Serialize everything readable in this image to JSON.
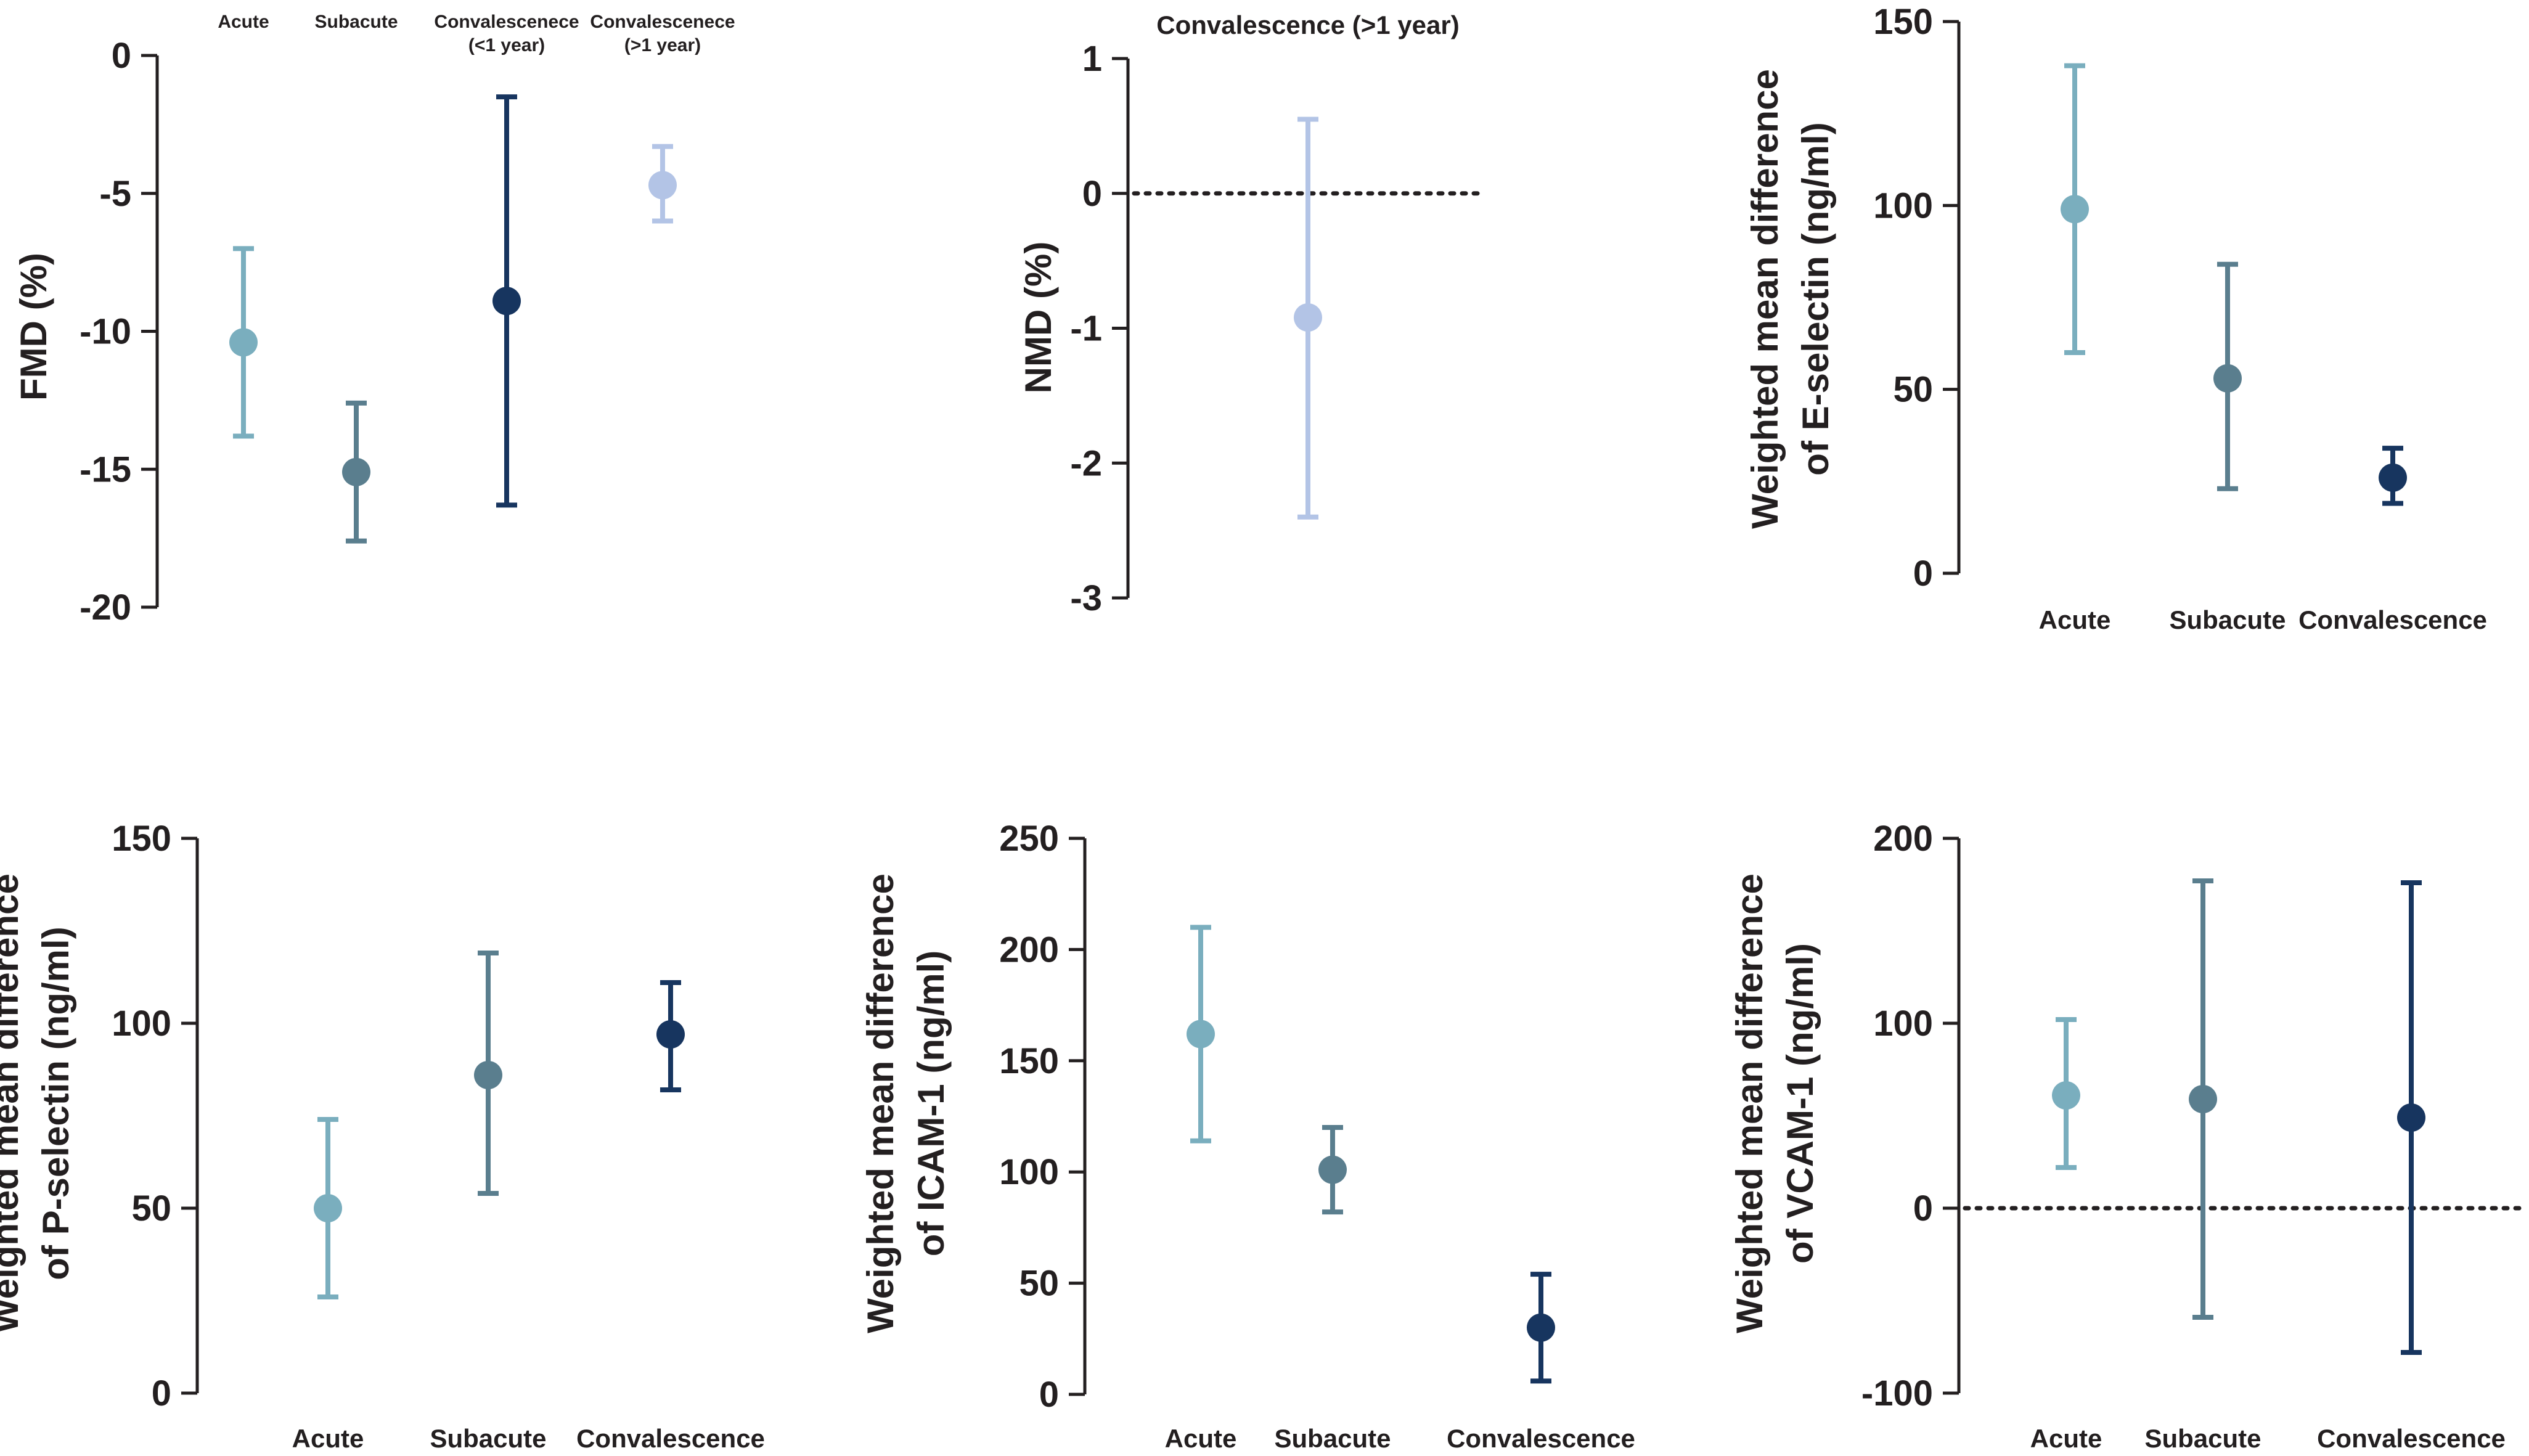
{
  "chart_data": [
    {
      "type": "errorbar",
      "title": "",
      "xlabel": "",
      "ylabel": "FMD (%)",
      "ylim": [
        -20,
        0
      ],
      "yticks": [
        0,
        -5,
        -10,
        -15,
        -20
      ],
      "ytick_labels": [
        "0",
        "-5",
        "-10",
        "-15",
        "-20"
      ],
      "category_label_position": "top",
      "categories": [
        [
          "Acute"
        ],
        [
          "Subacute"
        ],
        [
          "Convalescenece",
          "(<1 year)"
        ],
        [
          "Convalescenece",
          "(>1 year)"
        ]
      ],
      "points": [
        {
          "mean": -10.4,
          "lower": -13.8,
          "upper": -7.0,
          "color": "#7aaebe"
        },
        {
          "mean": -15.1,
          "lower": -17.6,
          "upper": -12.6,
          "color": "#5a7e8e"
        },
        {
          "mean": -8.9,
          "lower": -16.3,
          "upper": -1.5,
          "color": "#17355f"
        },
        {
          "mean": -4.7,
          "lower": -6.0,
          "upper": -3.3,
          "color": "#b3c4e6"
        }
      ],
      "reference_line": null
    },
    {
      "type": "errorbar",
      "title": "",
      "xlabel": "",
      "ylabel": "NMD (%)",
      "ylim": [
        -3,
        1
      ],
      "yticks": [
        1,
        0,
        -1,
        -2,
        -3
      ],
      "ytick_labels": [
        "1",
        "0",
        "-1",
        "-2",
        "-3"
      ],
      "category_label_position": "top",
      "categories": [
        [
          "Convalescence (>1 year)"
        ]
      ],
      "points": [
        {
          "mean": -0.92,
          "lower": -2.4,
          "upper": 0.55,
          "color": "#b3c4e6"
        }
      ],
      "reference_line": 0
    },
    {
      "type": "errorbar",
      "title": "",
      "xlabel": "",
      "ylabel": [
        "Weighted mean difference",
        "of E-selectin (ng/ml)"
      ],
      "ylim": [
        0,
        150
      ],
      "yticks": [
        150,
        100,
        50,
        0
      ],
      "ytick_labels": [
        "150",
        "100",
        "50",
        "0"
      ],
      "category_label_position": "bottom",
      "categories": [
        [
          "Acute"
        ],
        [
          "Subacute"
        ],
        [
          "Convalescence"
        ]
      ],
      "points": [
        {
          "mean": 99,
          "lower": 60,
          "upper": 138,
          "color": "#7aaebe"
        },
        {
          "mean": 53,
          "lower": 23,
          "upper": 84,
          "color": "#5a7e8e"
        },
        {
          "mean": 26,
          "lower": 19,
          "upper": 34,
          "color": "#17355f"
        }
      ],
      "reference_line": null
    },
    {
      "type": "errorbar",
      "title": "",
      "xlabel": "",
      "ylabel": [
        "Weighted mean difference",
        "of P-selectin (ng/ml)"
      ],
      "ylim": [
        0,
        150
      ],
      "yticks": [
        150,
        100,
        50,
        0
      ],
      "ytick_labels": [
        "150",
        "100",
        "50",
        "0"
      ],
      "category_label_position": "bottom",
      "categories": [
        [
          "Acute"
        ],
        [
          "Subacute"
        ],
        [
          "Convalescence"
        ]
      ],
      "points": [
        {
          "mean": 50,
          "lower": 26,
          "upper": 74,
          "color": "#7aaebe"
        },
        {
          "mean": 86,
          "lower": 54,
          "upper": 119,
          "color": "#5a7e8e"
        },
        {
          "mean": 97,
          "lower": 82,
          "upper": 111,
          "color": "#17355f"
        }
      ],
      "reference_line": null
    },
    {
      "type": "errorbar",
      "title": "",
      "xlabel": "",
      "ylabel": [
        "Weighted mean difference",
        "of ICAM-1 (ng/ml)"
      ],
      "ylim": [
        0,
        250
      ],
      "yticks": [
        250,
        200,
        150,
        100,
        50,
        0
      ],
      "ytick_labels": [
        "250",
        "200",
        "150",
        "100",
        "50",
        "0"
      ],
      "category_label_position": "bottom",
      "categories": [
        [
          "Acute"
        ],
        [
          "Subacute"
        ],
        [
          "Convalescence"
        ]
      ],
      "points": [
        {
          "mean": 162,
          "lower": 114,
          "upper": 210,
          "color": "#7aaebe"
        },
        {
          "mean": 101,
          "lower": 82,
          "upper": 120,
          "color": "#5a7e8e"
        },
        {
          "mean": 30,
          "lower": 6,
          "upper": 54,
          "color": "#17355f"
        }
      ],
      "reference_line": null
    },
    {
      "type": "errorbar",
      "title": "",
      "xlabel": "",
      "ylabel": [
        "Weighted mean difference",
        "of VCAM-1 (ng/ml)"
      ],
      "ylim": [
        -100,
        200
      ],
      "yticks": [
        200,
        100,
        0,
        -100
      ],
      "ytick_labels": [
        "200",
        "100",
        "0",
        "-100"
      ],
      "category_label_position": "bottom",
      "categories": [
        [
          "Acute"
        ],
        [
          "Subacute"
        ],
        [
          "Convalescence"
        ]
      ],
      "points": [
        {
          "mean": 61,
          "lower": 22,
          "upper": 102,
          "color": "#7aaebe"
        },
        {
          "mean": 59,
          "lower": -59,
          "upper": 177,
          "color": "#5a7e8e"
        },
        {
          "mean": 49,
          "lower": -78,
          "upper": 176,
          "color": "#17355f"
        }
      ],
      "reference_line": 0
    }
  ]
}
